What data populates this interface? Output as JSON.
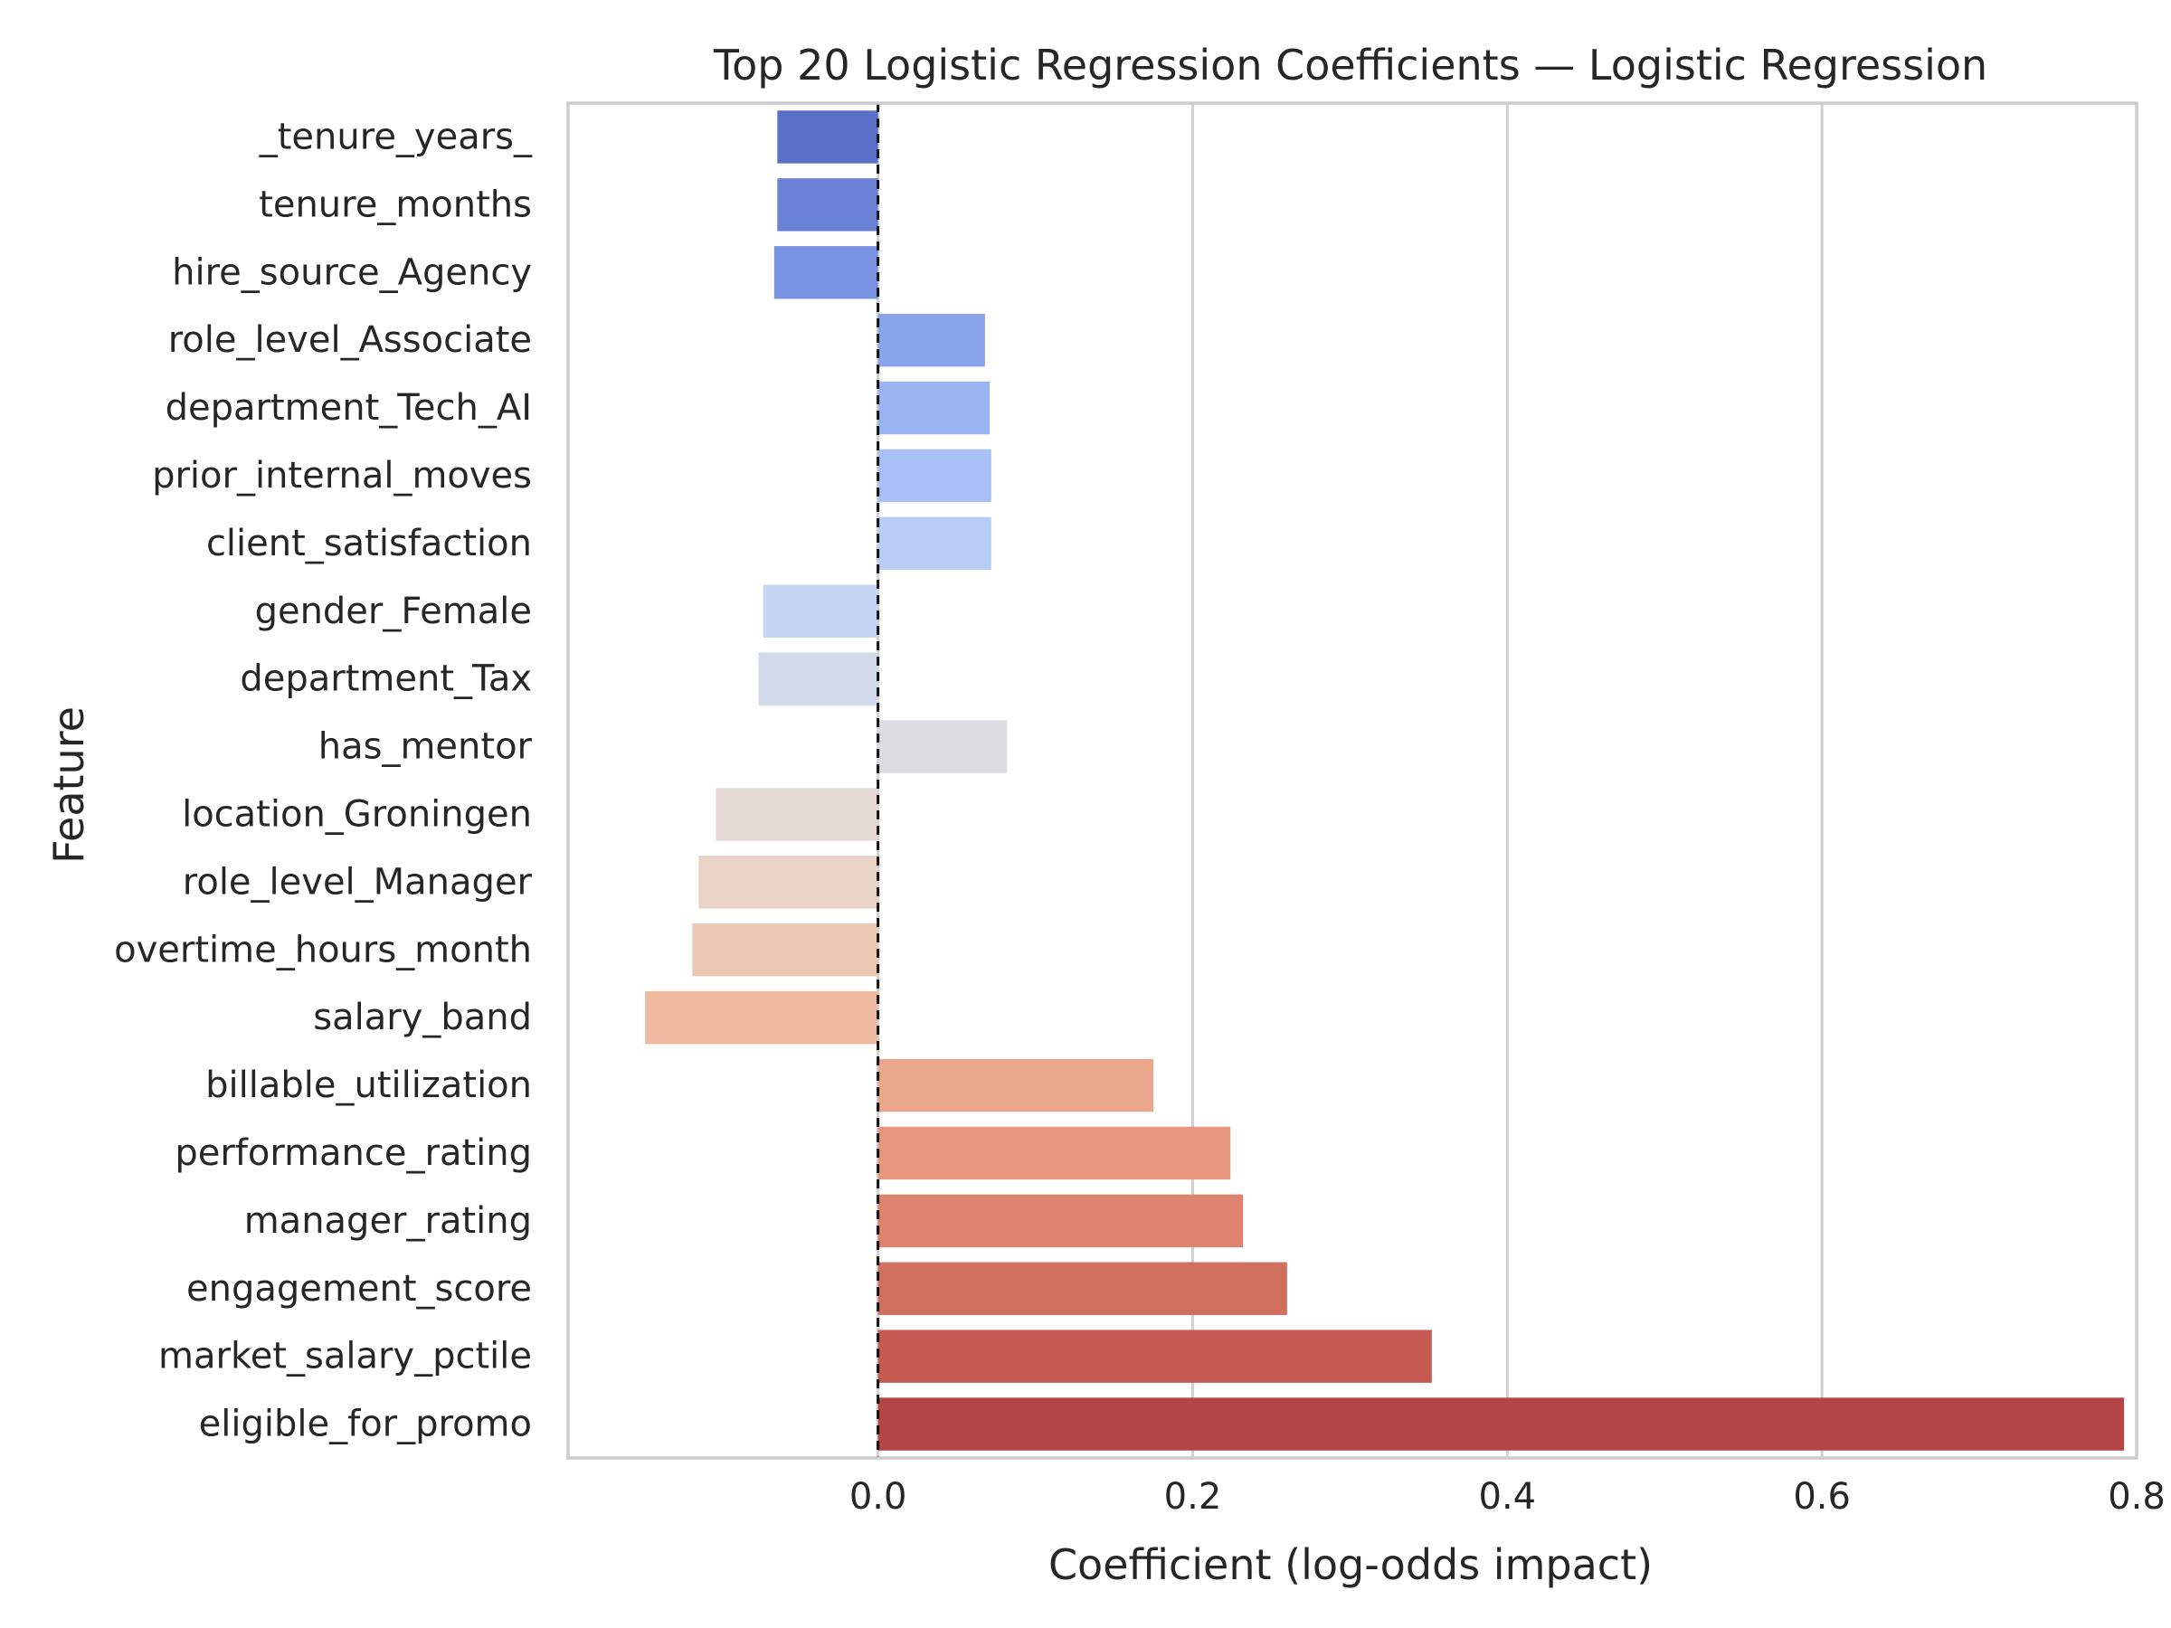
{
  "chart_data": {
    "type": "bar",
    "orientation": "horizontal",
    "title": "Top 20 Logistic Regression Coefficients — Logistic Regression",
    "xlabel": "Coefficient (log-odds impact)",
    "ylabel": "Feature",
    "xlim": [
      -0.197,
      0.8
    ],
    "xticks": [
      0.0,
      0.2,
      0.4,
      0.6,
      0.8
    ],
    "xtick_labels": [
      "0.0",
      "0.2",
      "0.4",
      "0.6",
      "0.8"
    ],
    "grid": "vertical",
    "reference_line": {
      "value": 0.0,
      "style": "dashed"
    },
    "categories": [
      "_tenure_years_",
      "tenure_months",
      "hire_source_Agency",
      "role_level_Associate",
      "department_Tech_AI",
      "prior_internal_moves",
      "client_satisfaction",
      "gender_Female",
      "department_Tax",
      "has_mentor",
      "location_Groningen",
      "role_level_Manager",
      "overtime_hours_month",
      "salary_band",
      "billable_utilization",
      "performance_rating",
      "manager_rating",
      "engagement_score",
      "market_salary_pctile",
      "eligible_for_promo"
    ],
    "values": [
      -0.064,
      -0.064,
      -0.066,
      0.068,
      0.071,
      0.072,
      0.072,
      -0.073,
      -0.076,
      0.082,
      -0.103,
      -0.114,
      -0.118,
      -0.148,
      0.175,
      0.224,
      0.232,
      0.26,
      0.352,
      0.792
    ],
    "colors": [
      "#5a6fc8",
      "#6a81d6",
      "#7a93e2",
      "#8aa4ec",
      "#9ab3f3",
      "#a9c0f7",
      "#b8ccf8",
      "#c6d5f4",
      "#d2dbeb",
      "#dcdde2",
      "#e4d9d4",
      "#e9d2c6",
      "#ecc7b4",
      "#eebaa0",
      "#eba78c",
      "#e5967d",
      "#de836d",
      "#d16f5f",
      "#c45a52",
      "#b54446"
    ]
  }
}
